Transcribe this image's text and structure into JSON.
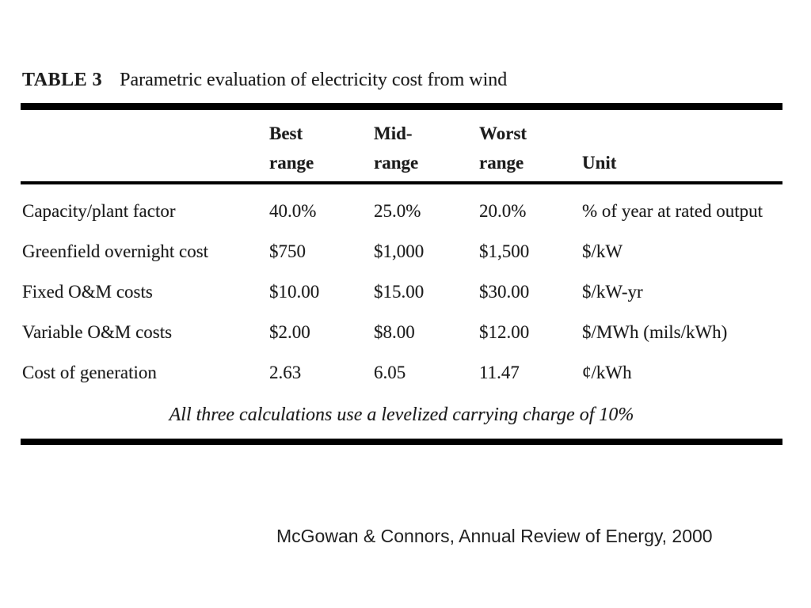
{
  "table": {
    "label": "TABLE 3",
    "title": "Parametric evaluation of electricity cost from wind",
    "columns": [
      {
        "line1": "Best",
        "line2": "range"
      },
      {
        "line1": "Mid-",
        "line2": "range"
      },
      {
        "line1": "Worst",
        "line2": "range"
      },
      {
        "line1": "",
        "line2": "Unit"
      }
    ],
    "rows": [
      {
        "label": "Capacity/plant factor",
        "best": "40.0%",
        "mid": "25.0%",
        "worst": "20.0%",
        "unit": "% of year at rated output"
      },
      {
        "label": "Greenfield overnight cost",
        "best": "$750",
        "mid": "$1,000",
        "worst": "$1,500",
        "unit": "$/kW"
      },
      {
        "label": "Fixed O&M costs",
        "best": "$10.00",
        "mid": "$15.00",
        "worst": "$30.00",
        "unit": "$/kW-yr"
      },
      {
        "label": "Variable O&M costs",
        "best": "$2.00",
        "mid": "$8.00",
        "worst": "$12.00",
        "unit": "$/MWh (mils/kWh)"
      },
      {
        "label": "Cost of generation",
        "best": "2.63",
        "mid": "6.05",
        "worst": "11.47",
        "unit": "¢/kWh"
      }
    ],
    "footnote": "All three calculations use a levelized carrying charge of 10%"
  },
  "caption": "McGowan & Connors, Annual Review of Energy, 2000",
  "colors": {
    "text": "#1c1c1c",
    "rule": "#000000",
    "background": "#ffffff"
  }
}
